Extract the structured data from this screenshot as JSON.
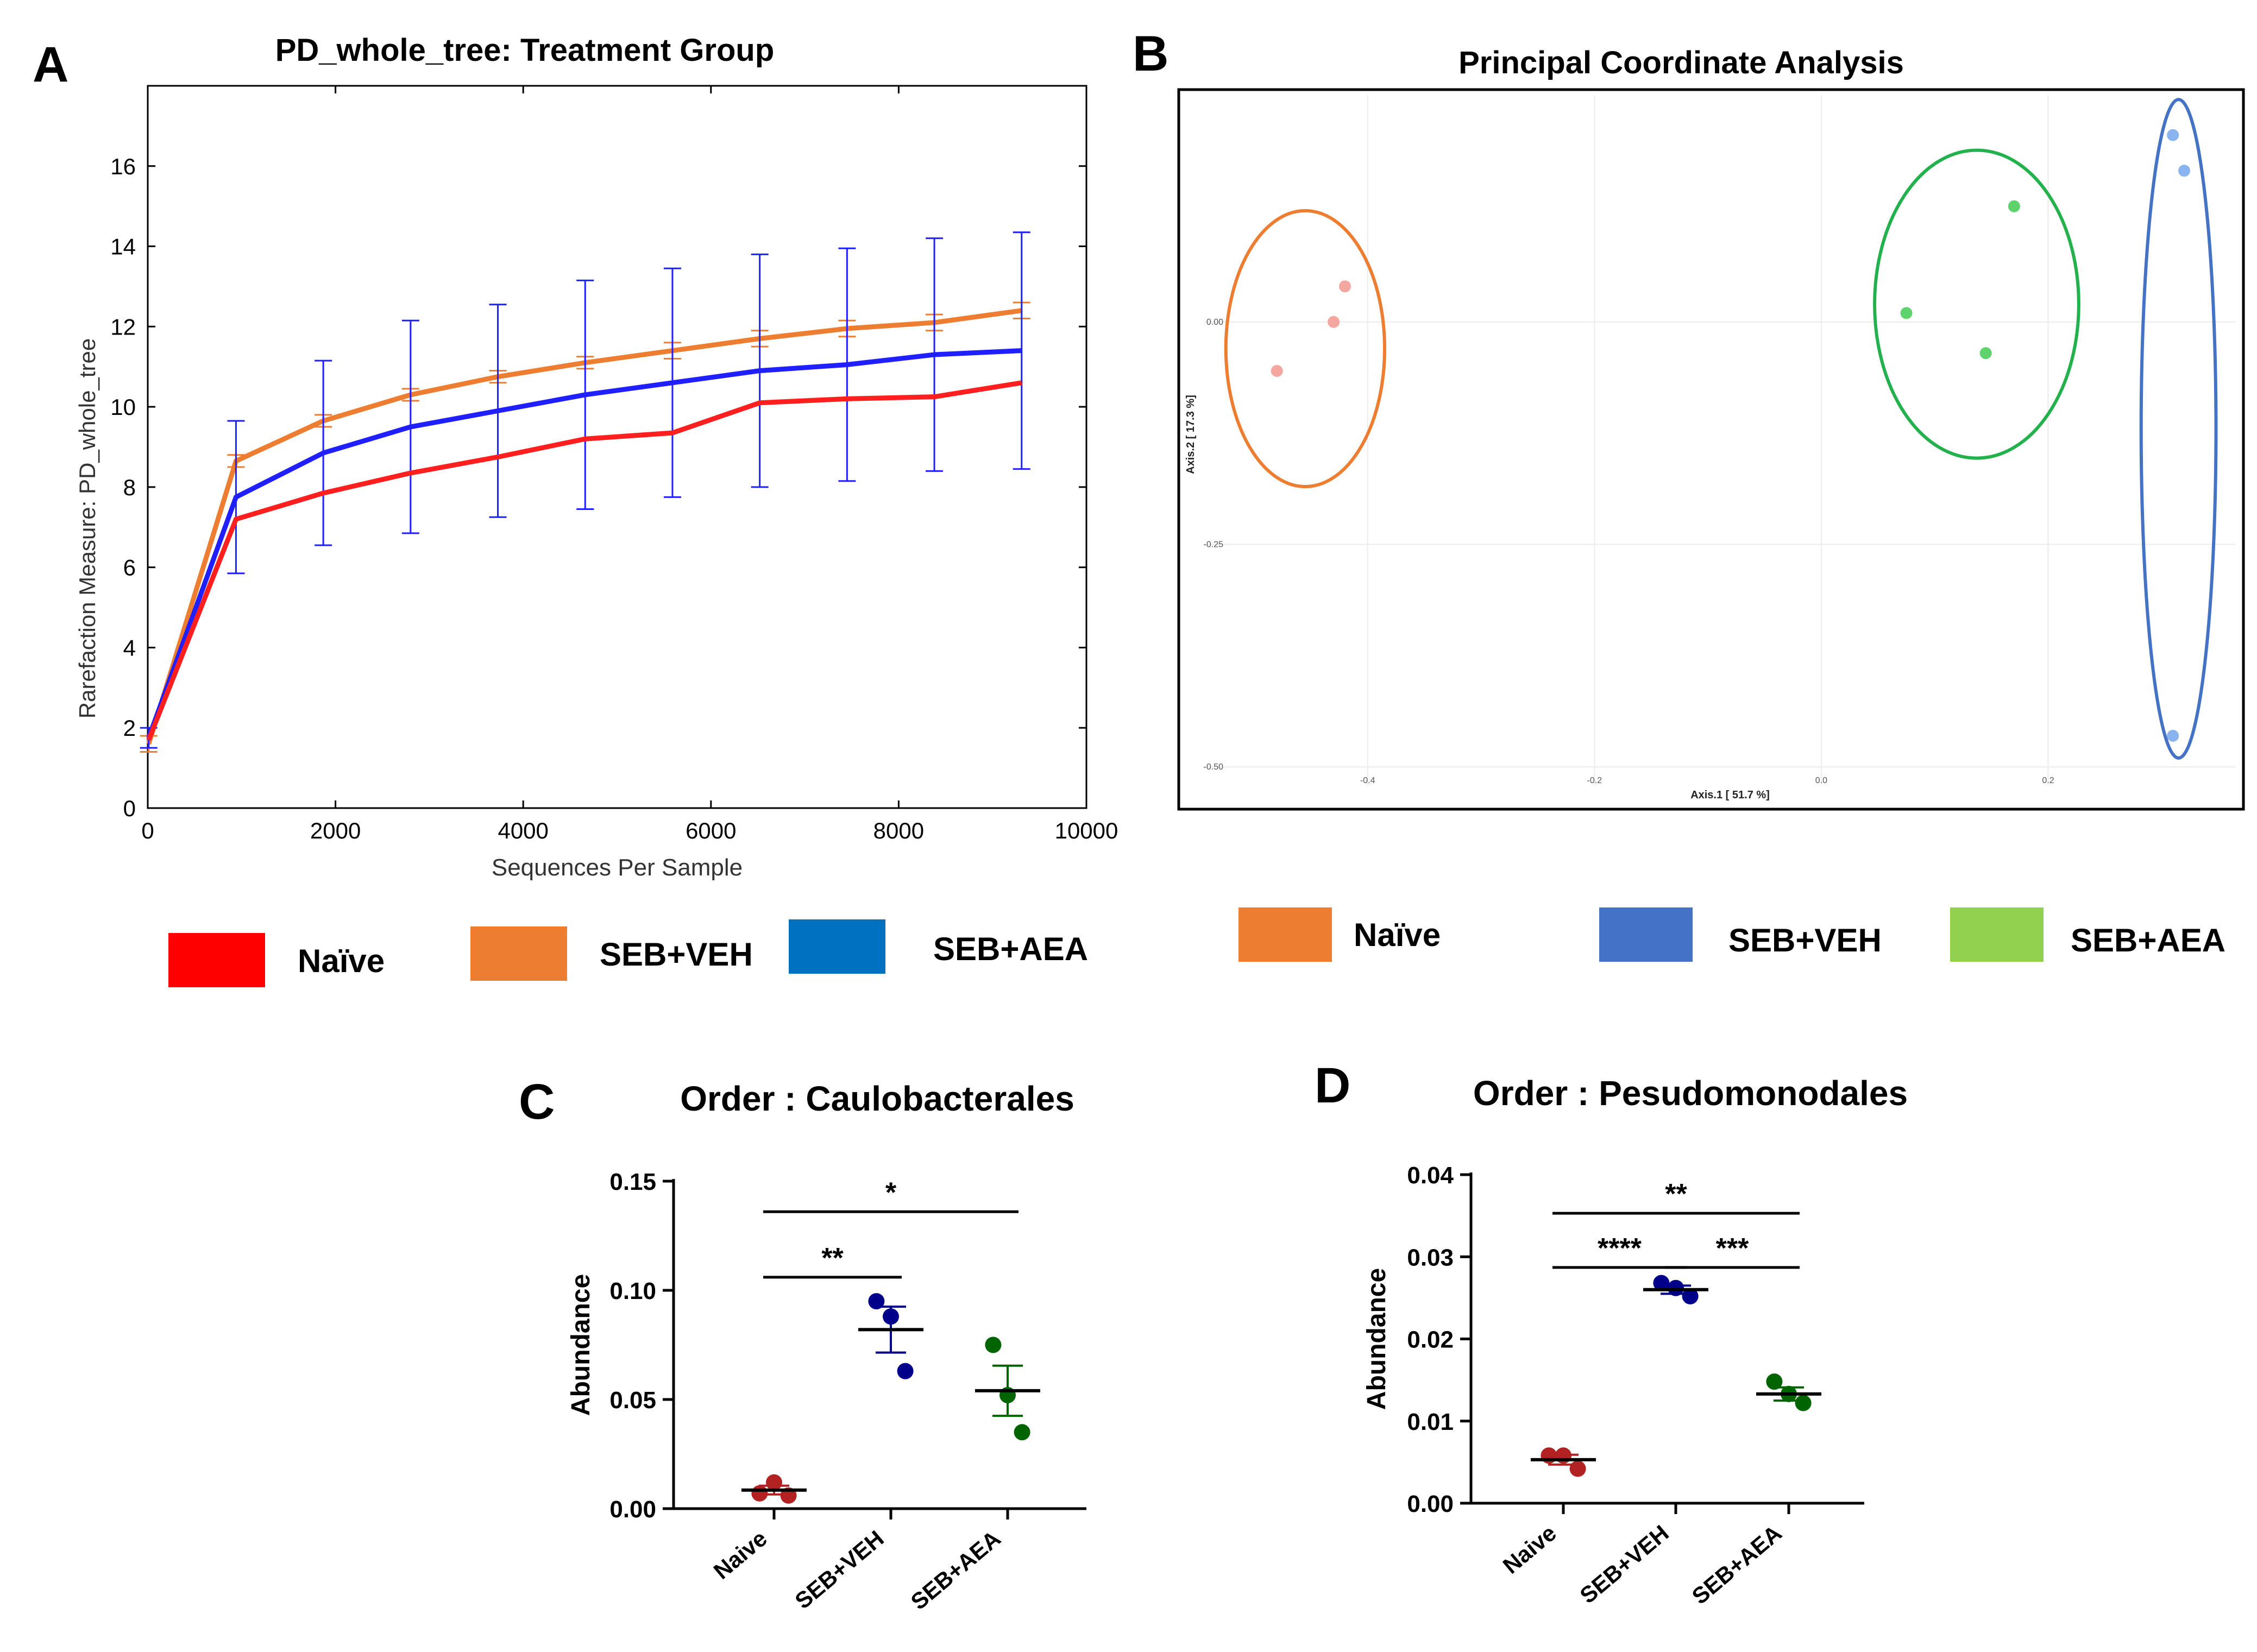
{
  "panels": {
    "A": {
      "letter": "A"
    },
    "B": {
      "letter": "B"
    },
    "C": {
      "letter": "C"
    },
    "D": {
      "letter": "D"
    }
  },
  "legends": {
    "A": [
      {
        "label": "Naïve",
        "color": "#ff0000"
      },
      {
        "label": "SEB+VEH",
        "color": "#ed7d31"
      },
      {
        "label": "SEB+AEA",
        "color": "#0070c0"
      }
    ],
    "B": [
      {
        "label": "Naïve",
        "color": "#ed7d31"
      },
      {
        "label": "SEB+VEH",
        "color": "#4472c4"
      },
      {
        "label": "SEB+AEA",
        "color": "#92d050"
      }
    ]
  },
  "chart_data": [
    {
      "id": "A",
      "type": "line",
      "title": "PD_whole_tree: Treatment Group",
      "xlabel": "Sequences Per Sample",
      "ylabel": "Rarefaction Measure: PD_whole_tree",
      "xlim": [
        0,
        10000
      ],
      "ylim": [
        0,
        18
      ],
      "xticks": [
        0,
        2000,
        4000,
        6000,
        8000,
        10000
      ],
      "yticks": [
        0,
        2,
        4,
        6,
        8,
        10,
        12,
        14,
        16
      ],
      "x": [
        10,
        940,
        1870,
        2800,
        3730,
        4660,
        5590,
        6520,
        7450,
        8380,
        9310
      ],
      "series": [
        {
          "name": "SEB+VEH",
          "color": "#ed7d31",
          "values": [
            1.6,
            8.65,
            9.65,
            10.3,
            10.75,
            11.1,
            11.4,
            11.7,
            11.95,
            12.1,
            12.4
          ],
          "err": [
            0.2,
            0.15,
            0.15,
            0.15,
            0.15,
            0.15,
            0.2,
            0.2,
            0.2,
            0.2,
            0.2
          ]
        },
        {
          "name": "SEB+AEA",
          "color": "#1f1fff",
          "values": [
            1.75,
            7.75,
            8.85,
            9.5,
            9.9,
            10.3,
            10.6,
            10.9,
            11.05,
            11.3,
            11.4
          ],
          "err": [
            0.25,
            1.9,
            2.3,
            2.65,
            2.65,
            2.85,
            2.85,
            2.9,
            2.9,
            2.9,
            2.95
          ]
        },
        {
          "name": "Naïve",
          "color": "#ff1f1f",
          "values": [
            1.7,
            7.2,
            7.85,
            8.35,
            8.75,
            9.2,
            9.35,
            10.1,
            10.2,
            10.25,
            10.6
          ],
          "err": [
            0,
            0,
            0,
            0,
            0,
            0,
            0,
            0,
            0,
            0,
            0
          ]
        }
      ]
    },
    {
      "id": "B",
      "type": "scatter",
      "title": "Principal Coordinate Analysis",
      "xlabel": "Axis.1 [ 51.7 %]",
      "ylabel": "Axis.2 [ 17.3 %]",
      "xlim": [
        -0.545,
        0.365
      ],
      "ylim": [
        -0.52,
        0.255
      ],
      "xticks": [
        -0.4,
        -0.2,
        0.0,
        0.2
      ],
      "xtick_labels": [
        "-0.4",
        "-0.2",
        "0.0",
        "0.2"
      ],
      "yticks": [
        0.0,
        -0.25,
        -0.5
      ],
      "ytick_labels": [
        "0.00",
        "-0.25",
        "-0.50"
      ],
      "groups": [
        {
          "name": "Naïve",
          "point_color": "#f4a6a0",
          "ellipse_color": "#ed7d31",
          "points": [
            [
              -0.42,
              0.04
            ],
            [
              -0.43,
              0.0
            ],
            [
              -0.48,
              -0.055
            ]
          ],
          "ellipse": {
            "cx": -0.455,
            "cy": -0.03,
            "rx": 0.07,
            "ry": 0.155
          }
        },
        {
          "name": "SEB+AEA",
          "point_color": "#5fd36b",
          "ellipse_color": "#22b14c",
          "points": [
            [
              0.17,
              0.13
            ],
            [
              0.075,
              0.01
            ],
            [
              0.145,
              -0.035
            ]
          ],
          "ellipse": {
            "cx": 0.137,
            "cy": 0.02,
            "rx": 0.09,
            "ry": 0.173
          }
        },
        {
          "name": "SEB+VEH",
          "point_color": "#8ab4f0",
          "ellipse_color": "#4472c4",
          "points": [
            [
              0.31,
              0.21
            ],
            [
              0.32,
              0.17
            ],
            [
              0.31,
              -0.465
            ]
          ],
          "ellipse": {
            "cx": 0.315,
            "cy": -0.12,
            "rx": 0.033,
            "ry": 0.37
          }
        }
      ]
    },
    {
      "id": "C",
      "type": "scatter",
      "title": "Order : Caulobacterales",
      "ylabel": "Abundance",
      "ylim": [
        0,
        0.15
      ],
      "yticks": [
        0,
        0.05,
        0.1,
        0.15
      ],
      "ytick_labels": [
        "0.00",
        "0.05",
        "0.10",
        "0.15"
      ],
      "categories": [
        "Naive",
        "SEB+VEH",
        "SEB+AEA"
      ],
      "colors": [
        "#b22222",
        "#00008b",
        "#006400"
      ],
      "points": [
        [
          0.007,
          0.012,
          0.006
        ],
        [
          0.095,
          0.088,
          0.063
        ],
        [
          0.075,
          0.052,
          0.035
        ]
      ],
      "means": [
        0.0085,
        0.082,
        0.054
      ],
      "sem": [
        0.002,
        0.0105,
        0.0115
      ],
      "significance": [
        {
          "from": 0,
          "to": 1,
          "y": 0.106,
          "label": "**"
        },
        {
          "from": 0,
          "to": 2,
          "y": 0.136,
          "label": "*"
        }
      ]
    },
    {
      "id": "D",
      "type": "scatter",
      "title": "Order : Pesudomonodales",
      "ylabel": "Abundance",
      "ylim": [
        0,
        0.04
      ],
      "yticks": [
        0,
        0.01,
        0.02,
        0.03,
        0.04
      ],
      "ytick_labels": [
        "0.00",
        "0.01",
        "0.02",
        "0.03",
        "0.04"
      ],
      "categories": [
        "Naive",
        "SEB+VEH",
        "SEB+AEA"
      ],
      "colors": [
        "#b22222",
        "#00008b",
        "#006400"
      ],
      "points": [
        [
          0.0058,
          0.0058,
          0.0042
        ],
        [
          0.0268,
          0.0262,
          0.0252
        ],
        [
          0.0148,
          0.0133,
          0.0122
        ]
      ],
      "means": [
        0.0053,
        0.026,
        0.0133
      ],
      "sem": [
        0.0006,
        0.0005,
        0.0008
      ],
      "significance": [
        {
          "from": 0,
          "to": 1,
          "y": 0.0287,
          "label": "****"
        },
        {
          "from": 1,
          "to": 2,
          "y": 0.0287,
          "label": "***"
        },
        {
          "from": 0,
          "to": 2,
          "y": 0.0353,
          "label": "**"
        }
      ]
    }
  ]
}
